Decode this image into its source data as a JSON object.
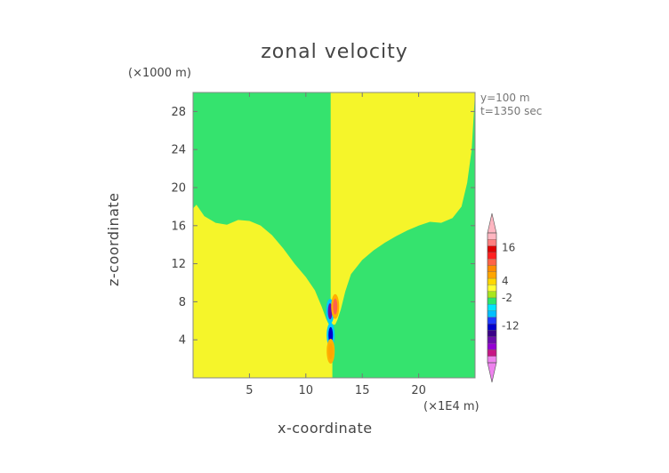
{
  "chart_data": {
    "type": "heatmap",
    "title": "zonal velocity",
    "xlabel": "x-coordinate",
    "ylabel": "z-coordinate",
    "x_unit": "(×1E4 m)",
    "y_unit": "(×1000 m)",
    "annotations": [
      "y=100 m",
      "t=1350 sec"
    ],
    "xlim": [
      0,
      25
    ],
    "ylim": [
      0,
      30
    ],
    "x_ticks": [
      5,
      10,
      15,
      20
    ],
    "y_ticks": [
      4,
      8,
      12,
      16,
      20,
      24,
      28
    ],
    "colorbar": {
      "tick_labels": [
        "16",
        "4",
        "-2",
        "-12"
      ],
      "tick_values": [
        16,
        4,
        -2,
        -12
      ],
      "extend": "both",
      "levels": [
        {
          "color": "#ee82ee",
          "value": -24
        },
        {
          "color": "#c71585",
          "value": -20
        },
        {
          "color": "#9400d3",
          "value": -16
        },
        {
          "color": "#6a0dad",
          "value": -12
        },
        {
          "color": "#3a0088",
          "value": -8
        },
        {
          "color": "#0000cd",
          "value": -6
        },
        {
          "color": "#1e3cff",
          "value": -4
        },
        {
          "color": "#00bfff",
          "value": -2
        },
        {
          "color": "#00e5ff",
          "value": 0
        },
        {
          "color": "#2ee66b",
          "value": 2
        },
        {
          "color": "#a8e61d",
          "value": 3
        },
        {
          "color": "#ffff33",
          "value": 4
        },
        {
          "color": "#ffd700",
          "value": 6
        },
        {
          "color": "#ffa500",
          "value": 8
        },
        {
          "color": "#ff8c00",
          "value": 10
        },
        {
          "color": "#ff6347",
          "value": 12
        },
        {
          "color": "#ff2020",
          "value": 14
        },
        {
          "color": "#e00000",
          "value": 16
        },
        {
          "color": "#ff7f7f",
          "value": 18
        },
        {
          "color": "#ffb6c1",
          "value": 20
        }
      ]
    },
    "fields": {
      "green": "#35e36e",
      "yellow": "#f5f52a"
    },
    "boundary_curve": {
      "x": [
        0,
        0.3,
        1.0,
        2.0,
        3.0,
        4.0,
        5.0,
        6.0,
        7.0,
        8.0,
        9.0,
        10.0,
        10.8,
        11.4,
        11.8,
        12.0,
        12.2
      ],
      "y": [
        17.8,
        18.2,
        17.0,
        16.3,
        16.1,
        16.6,
        16.5,
        16.0,
        15.0,
        13.6,
        12.0,
        10.6,
        9.2,
        7.5,
        6.2,
        5.7,
        5.6
      ],
      "right_x": [
        12.6,
        12.8,
        13.1,
        13.5,
        14.0,
        15.0,
        16.0,
        17.0,
        18.0,
        19.0,
        20.0,
        21.0,
        22.0,
        23.0,
        23.8,
        24.3,
        24.7,
        25.0
      ],
      "right_y": [
        5.6,
        6.1,
        7.2,
        9.1,
        10.9,
        12.4,
        13.4,
        14.2,
        14.9,
        15.5,
        16.0,
        16.4,
        16.3,
        16.8,
        18.0,
        20.5,
        24.0,
        30.0
      ]
    },
    "anomalies": [
      {
        "x": 12.15,
        "y": 7.0,
        "value": -12
      },
      {
        "x": 12.2,
        "y": 4.5,
        "value": -6
      },
      {
        "x": 12.6,
        "y": 7.5,
        "value": 12
      },
      {
        "x": 12.2,
        "y": 2.8,
        "value": 8
      }
    ]
  }
}
